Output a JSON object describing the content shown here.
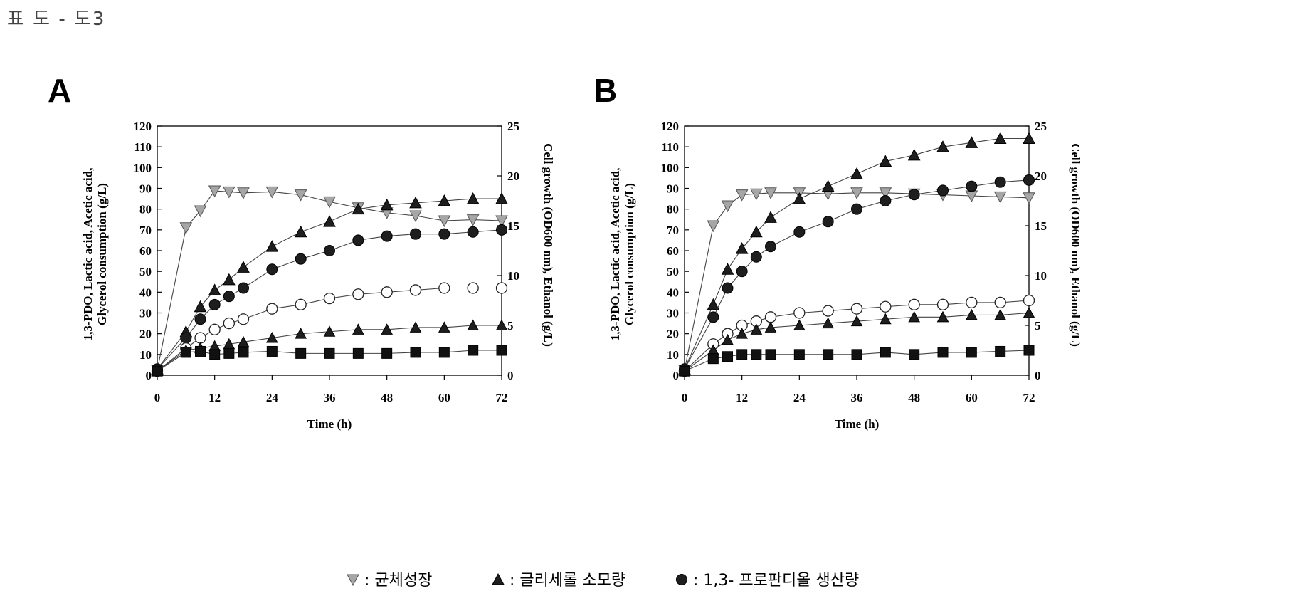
{
  "page": {
    "title": "표 도 - 도3"
  },
  "legend": {
    "items": [
      {
        "marker": "tri-down-gray",
        "label": ": 균체성장"
      },
      {
        "marker": "tri-up-black",
        "label": ": 글리세롤 소모량"
      },
      {
        "marker": "circle-black",
        "label": ": 1,3- 프로판디올 생산량"
      }
    ]
  },
  "chart_data": [
    {
      "panel": "A",
      "type": "line",
      "xlabel": "Time (h)",
      "ylabel_left": [
        "1,3-PDO, Lactic acid, Acetic acid,",
        "Glycerol consumption (g/L)"
      ],
      "ylabel_right": "Cell growth (OD600 nm), Ethanol (g/L)",
      "xlim": [
        0,
        72
      ],
      "ylim_left": [
        0,
        120
      ],
      "ylim_right": [
        0,
        25
      ],
      "xticks": [
        0,
        12,
        24,
        36,
        48,
        60,
        72
      ],
      "yticks_left": [
        0,
        10,
        20,
        30,
        40,
        50,
        60,
        70,
        80,
        90,
        100,
        110,
        120
      ],
      "yticks_right": [
        0,
        5,
        10,
        15,
        20,
        25
      ],
      "series": [
        {
          "name": "균체성장",
          "marker": "tri-down",
          "color": "#a6a6a6",
          "axis": "right",
          "x": [
            0,
            6,
            9,
            12,
            15,
            18,
            24,
            30,
            36,
            42,
            48,
            54,
            60,
            66,
            72
          ],
          "y": [
            0.5,
            14.8,
            16.5,
            18.5,
            18.4,
            18.3,
            18.4,
            18.1,
            17.4,
            16.8,
            16.3,
            16.0,
            15.5,
            15.6,
            15.5
          ]
        },
        {
          "name": "글리세롤 소모량",
          "marker": "tri-up",
          "color": "#222222",
          "axis": "left",
          "x": [
            0,
            6,
            9,
            12,
            15,
            18,
            24,
            30,
            36,
            42,
            48,
            54,
            60,
            66,
            72
          ],
          "y": [
            3,
            21,
            33,
            41,
            46,
            52,
            62,
            69,
            74,
            80,
            82,
            83,
            84,
            85,
            85
          ]
        },
        {
          "name": "1,3- 프로판디올 생산량",
          "marker": "circle",
          "color": "#222222",
          "axis": "left",
          "x": [
            0,
            6,
            9,
            12,
            15,
            18,
            24,
            30,
            36,
            42,
            48,
            54,
            60,
            66,
            72
          ],
          "y": [
            3,
            18,
            27,
            34,
            38,
            42,
            51,
            56,
            60,
            65,
            67,
            68,
            68,
            69,
            70
          ]
        },
        {
          "marker": "circle-open",
          "color": "#ffffff",
          "axis": "left",
          "x": [
            0,
            6,
            9,
            12,
            15,
            18,
            24,
            30,
            36,
            42,
            48,
            54,
            60,
            66,
            72
          ],
          "y": [
            2,
            13,
            18,
            22,
            25,
            27,
            32,
            34,
            37,
            39,
            40,
            41,
            42,
            42,
            42
          ]
        },
        {
          "marker": "tri-up-small",
          "color": "#222222",
          "axis": "left",
          "x": [
            0,
            6,
            9,
            12,
            15,
            18,
            24,
            30,
            36,
            42,
            48,
            54,
            60,
            66,
            72
          ],
          "y": [
            2,
            12,
            13,
            14,
            15,
            16,
            18,
            20,
            21,
            22,
            22,
            23,
            23,
            24,
            24
          ]
        },
        {
          "marker": "square",
          "color": "#111111",
          "axis": "left",
          "x": [
            0,
            6,
            9,
            12,
            15,
            18,
            24,
            30,
            36,
            42,
            48,
            54,
            60,
            66,
            72
          ],
          "y": [
            2,
            11,
            11.5,
            10,
            10.5,
            11,
            11.5,
            10.5,
            10.5,
            10.5,
            10.5,
            11,
            11,
            12,
            12
          ]
        }
      ]
    },
    {
      "panel": "B",
      "type": "line",
      "xlabel": "Time (h)",
      "ylabel_left": [
        "1,3-PDO, Lactic acid, Acetic acid,",
        "Glycerol consumption (g/L)"
      ],
      "ylabel_right": "Cell growth (OD600 nm), Ethanol (g/L)",
      "xlim": [
        0,
        72
      ],
      "ylim_left": [
        0,
        120
      ],
      "ylim_right": [
        0,
        25
      ],
      "xticks": [
        0,
        12,
        24,
        36,
        48,
        60,
        72
      ],
      "yticks_left": [
        0,
        10,
        20,
        30,
        40,
        50,
        60,
        70,
        80,
        90,
        100,
        110,
        120
      ],
      "yticks_right": [
        0,
        5,
        10,
        15,
        20,
        25
      ],
      "series": [
        {
          "name": "균체성장",
          "marker": "tri-down",
          "color": "#a6a6a6",
          "axis": "right",
          "x": [
            0,
            6,
            9,
            12,
            15,
            18,
            24,
            30,
            36,
            42,
            48,
            54,
            60,
            66,
            72
          ],
          "y": [
            0.5,
            15.0,
            17.0,
            18.1,
            18.2,
            18.3,
            18.3,
            18.2,
            18.3,
            18.3,
            18.2,
            18.1,
            18.0,
            17.9,
            17.8
          ]
        },
        {
          "name": "글리세롤 소모량",
          "marker": "tri-up",
          "color": "#222222",
          "axis": "left",
          "x": [
            0,
            6,
            9,
            12,
            15,
            18,
            24,
            30,
            36,
            42,
            48,
            54,
            60,
            66,
            72
          ],
          "y": [
            3,
            34,
            51,
            61,
            69,
            76,
            85,
            91,
            97,
            103,
            106,
            110,
            112,
            114,
            114
          ]
        },
        {
          "name": "1,3- 프로판디올 생산량",
          "marker": "circle",
          "color": "#222222",
          "axis": "left",
          "x": [
            0,
            6,
            9,
            12,
            15,
            18,
            24,
            30,
            36,
            42,
            48,
            54,
            60,
            66,
            72
          ],
          "y": [
            3,
            28,
            42,
            50,
            57,
            62,
            69,
            74,
            80,
            84,
            87,
            89,
            91,
            93,
            94
          ]
        },
        {
          "marker": "circle-open",
          "color": "#ffffff",
          "axis": "left",
          "x": [
            0,
            6,
            9,
            12,
            15,
            18,
            24,
            30,
            36,
            42,
            48,
            54,
            60,
            66,
            72
          ],
          "y": [
            2,
            15,
            20,
            24,
            26,
            28,
            30,
            31,
            32,
            33,
            34,
            34,
            35,
            35,
            36
          ]
        },
        {
          "marker": "tri-up-small",
          "color": "#222222",
          "axis": "left",
          "x": [
            0,
            6,
            9,
            12,
            15,
            18,
            24,
            30,
            36,
            42,
            48,
            54,
            60,
            66,
            72
          ],
          "y": [
            2,
            12,
            17,
            20,
            22,
            23,
            24,
            25,
            26,
            27,
            28,
            28,
            29,
            29,
            30
          ]
        },
        {
          "marker": "square",
          "color": "#111111",
          "axis": "left",
          "x": [
            0,
            6,
            9,
            12,
            15,
            18,
            24,
            30,
            36,
            42,
            48,
            54,
            60,
            66,
            72
          ],
          "y": [
            2,
            8,
            9,
            10,
            10,
            10,
            10,
            10,
            10,
            11,
            10,
            11,
            11,
            11.5,
            12
          ]
        }
      ]
    }
  ]
}
